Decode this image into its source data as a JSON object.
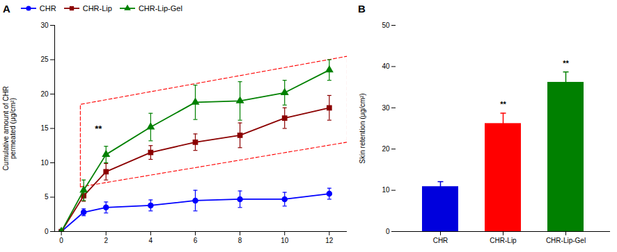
{
  "chart_data": [
    {
      "type": "line",
      "title": "A",
      "x": [
        0,
        1,
        2,
        4,
        6,
        8,
        10,
        12
      ],
      "series": [
        {
          "name": "CHR",
          "color": "#0000ff",
          "marker": "circle",
          "values": [
            0,
            2.8,
            3.5,
            3.8,
            4.5,
            4.7,
            4.7,
            5.5
          ],
          "errors": [
            0,
            0.5,
            0.8,
            0.8,
            1.5,
            1.2,
            1.0,
            0.8
          ]
        },
        {
          "name": "CHR-Lip",
          "color": "#8b0000",
          "marker": "square",
          "values": [
            0,
            5.2,
            8.7,
            11.5,
            13.0,
            14.0,
            16.5,
            18.0
          ],
          "errors": [
            0,
            0.8,
            1.2,
            1.0,
            1.2,
            1.8,
            1.5,
            1.8
          ]
        },
        {
          "name": "CHR-Lip-Gel",
          "color": "#008000",
          "marker": "triangle",
          "values": [
            0,
            6.0,
            11.2,
            15.2,
            18.8,
            19.0,
            20.2,
            23.5
          ],
          "errors": [
            0,
            1.5,
            1.2,
            2.0,
            2.5,
            2.8,
            1.8,
            1.5
          ]
        }
      ],
      "ylabel": "Cumulative amount of CHR\npermeated (μg/cm²)",
      "xlim": [
        -0.3,
        12.8
      ],
      "xticks": [
        0,
        2,
        4,
        6,
        8,
        10,
        12
      ],
      "ylim": [
        0,
        30
      ],
      "yticks": [
        0,
        5,
        10,
        15,
        20,
        25,
        30
      ],
      "grid": false,
      "legend": "upper left",
      "annotations": [
        {
          "text": "**",
          "x": 1.5,
          "y": 14.5
        }
      ],
      "shapes": [
        {
          "points": [
            [
              0.85,
              6.5
            ],
            [
              0.85,
              18.5
            ],
            [
              12.8,
              25.5
            ],
            [
              12.8,
              13.0
            ]
          ],
          "color": "red",
          "line_style": "dashed"
        }
      ]
    },
    {
      "type": "bar",
      "title": "B",
      "categories": [
        "CHR",
        "CHR-Lip",
        "CHR-Lip-Gel"
      ],
      "values": [
        10.9,
        26.2,
        36.2
      ],
      "errors": [
        1.2,
        2.5,
        2.5
      ],
      "colors": [
        "#0000dd",
        "#ff0000",
        "#008000"
      ],
      "ylabel": "Skin retention (μg/cm²)",
      "ylim": [
        0,
        50
      ],
      "yticks": [
        0,
        10,
        20,
        30,
        40,
        50
      ],
      "grid": false,
      "annotations": [
        {
          "text": "**",
          "x": "CHR-Lip",
          "y": 30.2
        },
        {
          "text": "**",
          "x": "CHR-Lip-Gel",
          "y": 40.2
        }
      ]
    }
  ]
}
